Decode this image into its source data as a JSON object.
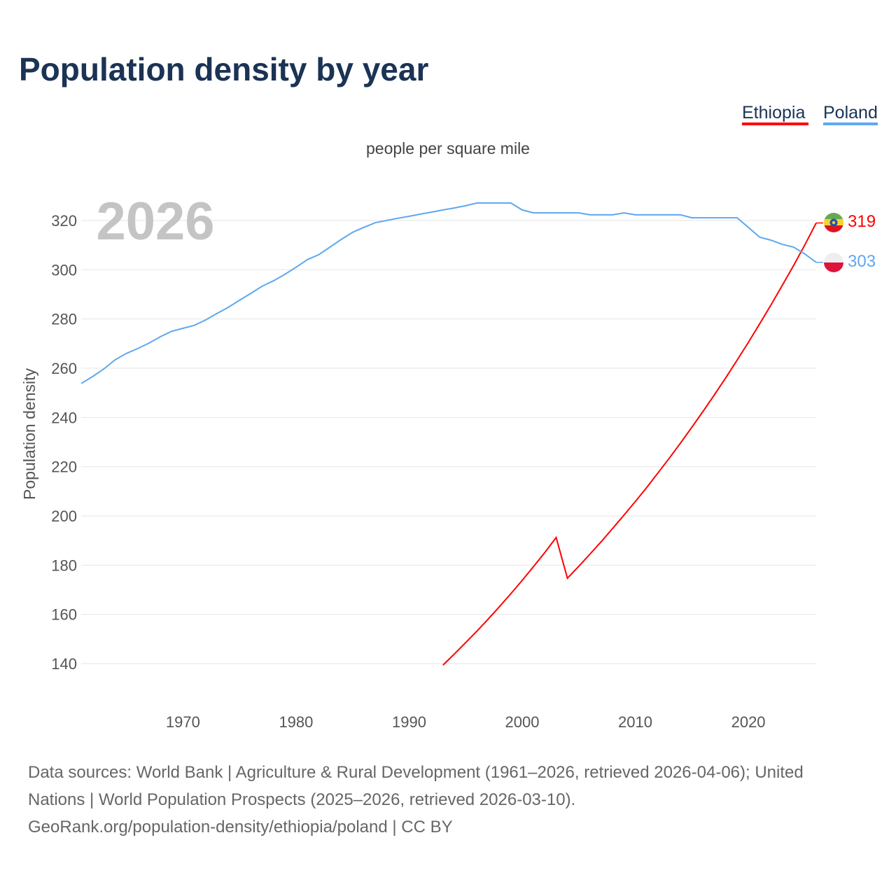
{
  "chart_data": {
    "type": "line",
    "title": "Population density by year",
    "subtitle": "people per square mile",
    "ylabel": "Population density",
    "xlabel": "",
    "year_watermark": "2026",
    "xlim": [
      1961,
      2026
    ],
    "ylim": [
      140,
      320
    ],
    "yticks": [
      140,
      160,
      180,
      200,
      220,
      240,
      260,
      280,
      300,
      320
    ],
    "xticks": [
      1970,
      1980,
      1990,
      2000,
      2010,
      2020
    ],
    "grid": true,
    "legend_placement": "top-right",
    "series": [
      {
        "name": "Ethiopia",
        "color": "#ff0000",
        "end_label": "319",
        "flag": "ethiopia-flag",
        "x": [
          1993,
          1994,
          1995,
          1996,
          1997,
          1998,
          1999,
          2000,
          2001,
          2002,
          2003,
          2004,
          2005,
          2006,
          2007,
          2008,
          2009,
          2010,
          2011,
          2012,
          2013,
          2014,
          2015,
          2016,
          2017,
          2018,
          2019,
          2020,
          2021,
          2022,
          2023,
          2024,
          2025,
          2026
        ],
        "values": [
          139.4,
          143.9,
          148.5,
          153.2,
          158.1,
          163.2,
          168.4,
          173.8,
          179.4,
          185.1,
          191.2,
          174.7,
          179.5,
          184.5,
          189.6,
          194.9,
          200.3,
          205.8,
          211.5,
          217.4,
          223.4,
          229.6,
          236.0,
          242.5,
          249.2,
          256.1,
          263.2,
          270.5,
          278.0,
          285.7,
          293.6,
          301.7,
          310.1,
          319.0
        ]
      },
      {
        "name": "Poland",
        "color": "#5ea8f0",
        "end_label": "303",
        "flag": "poland-flag",
        "x": [
          1961,
          1962,
          1963,
          1964,
          1965,
          1966,
          1967,
          1968,
          1969,
          1970,
          1971,
          1972,
          1973,
          1974,
          1975,
          1976,
          1977,
          1978,
          1979,
          1980,
          1981,
          1982,
          1983,
          1984,
          1985,
          1986,
          1987,
          1988,
          1989,
          1990,
          1991,
          1992,
          1993,
          1994,
          1995,
          1996,
          1997,
          1998,
          1999,
          2000,
          2001,
          2002,
          2003,
          2004,
          2005,
          2006,
          2007,
          2008,
          2009,
          2010,
          2011,
          2012,
          2013,
          2014,
          2015,
          2016,
          2017,
          2018,
          2019,
          2020,
          2021,
          2022,
          2023,
          2024,
          2025,
          2026
        ],
        "values": [
          253.8,
          256.6,
          259.7,
          263.4,
          266.0,
          268.0,
          270.2,
          272.8,
          275.0,
          276.2,
          277.4,
          279.6,
          282.2,
          284.7,
          287.6,
          290.4,
          293.3,
          295.5,
          298.1,
          301.0,
          304.1,
          306.1,
          309.2,
          312.3,
          315.2,
          317.2,
          319.1,
          320.0,
          320.9,
          321.7,
          322.6,
          323.4,
          324.3,
          325.1,
          326.0,
          327.1,
          327.1,
          327.1,
          327.1,
          324.3,
          323.1,
          323.1,
          323.1,
          323.1,
          323.1,
          322.3,
          322.3,
          322.3,
          323.1,
          322.3,
          322.3,
          322.3,
          322.3,
          322.3,
          321.1,
          321.1,
          321.1,
          321.1,
          321.1,
          317.2,
          313.2,
          312.0,
          310.3,
          309.2,
          306.4,
          303.0
        ]
      }
    ]
  },
  "footer": {
    "line1": "Data sources: World Bank | Agriculture & Rural Development (1961–2026, retrieved 2026-04-06); United",
    "line2": "Nations | World Population Prospects (2025–2026, retrieved 2026-03-10).",
    "line3": "GeoRank.org/population-density/ethiopia/poland | CC BY"
  }
}
